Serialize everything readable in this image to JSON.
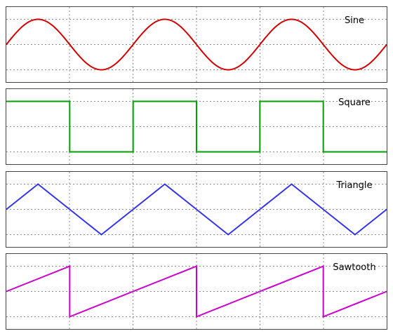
{
  "chart_data": {
    "type": "line",
    "grid": true,
    "x_range": [
      0,
      3
    ],
    "y_range": [
      -1,
      1
    ],
    "panels": [
      {
        "name": "Sine",
        "color": "#d40000",
        "wave": "sine",
        "cycles": 3
      },
      {
        "name": "Square",
        "color": "#00a000",
        "wave": "square",
        "cycles": 3
      },
      {
        "name": "Triangle",
        "color": "#3333ee",
        "wave": "triangle",
        "cycles": 3
      },
      {
        "name": "Sawtooth",
        "color": "#cc00cc",
        "wave": "sawtooth",
        "cycles": 3
      }
    ]
  }
}
